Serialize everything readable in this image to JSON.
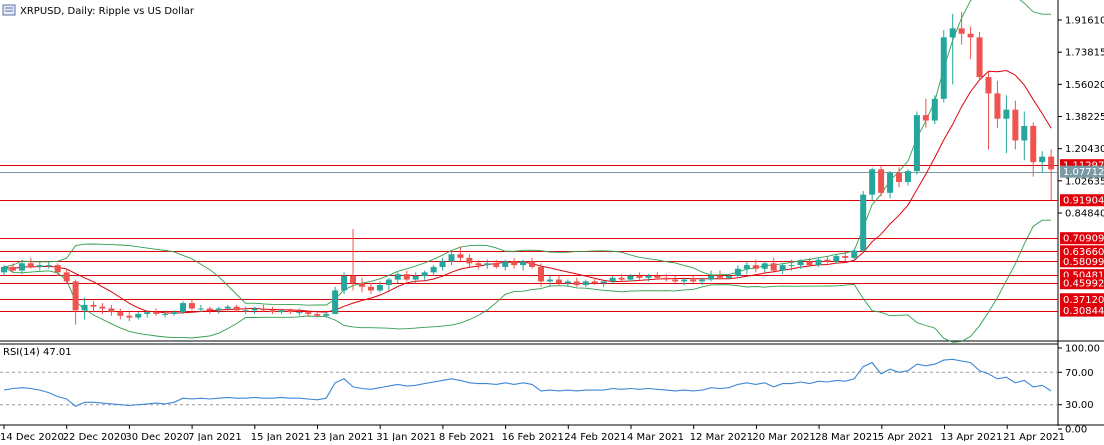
{
  "header": {
    "title": "XRPUSD, Daily:  Ripple vs US Dollar",
    "icon": "chart-window-icon"
  },
  "chart_data": {
    "type": "candlestick",
    "symbol": "XRPUSD",
    "timeframe": "Daily",
    "description": "Ripple vs US Dollar",
    "ylim": [
      0.25,
      2.0
    ],
    "y_ticks": [
      "1.91610",
      "1.73815",
      "1.56020",
      "1.38225",
      "1.20430",
      "1.02635",
      "0.84840"
    ],
    "x_ticks": [
      "14 Dec 2020",
      "22 Dec 2020",
      "30 Dec 2020",
      "7 Jan 2021",
      "15 Jan 2021",
      "23 Jan 2021",
      "31 Jan 2021",
      "8 Feb 2021",
      "16 Feb 2021",
      "24 Feb 2021",
      "4 Mar 2021",
      "12 Mar 2021",
      "20 Mar 2021",
      "28 Mar 2021",
      "5 Apr 2021",
      "13 Apr 2021",
      "21 Apr 2021"
    ],
    "price_levels": [
      {
        "label": "1.11297",
        "value": 1.11297,
        "tag": "red"
      },
      {
        "label": "1.07712",
        "value": 1.07712,
        "tag": "gray"
      },
      {
        "label": "0.91904",
        "value": 0.91904,
        "tag": "red"
      },
      {
        "label": "0.70909",
        "value": 0.70909,
        "tag": "red"
      },
      {
        "label": "0.63660",
        "value": 0.6366,
        "tag": "red"
      },
      {
        "label": "0.58099",
        "value": 0.58099,
        "tag": "red"
      },
      {
        "label": "0.50481",
        "value": 0.50481,
        "tag": "red"
      },
      {
        "label": "0.45992",
        "value": 0.45992,
        "tag": "red"
      },
      {
        "label": "0.37120",
        "value": 0.3712,
        "tag": "red"
      },
      {
        "label": "0.30844",
        "value": 0.30844,
        "tag": "red"
      }
    ],
    "candles": [
      [
        0.52,
        0.56,
        0.5,
        0.55
      ],
      [
        0.55,
        0.57,
        0.52,
        0.53
      ],
      [
        0.53,
        0.59,
        0.51,
        0.57
      ],
      [
        0.57,
        0.6,
        0.54,
        0.55
      ],
      [
        0.55,
        0.58,
        0.53,
        0.56
      ],
      [
        0.56,
        0.58,
        0.54,
        0.56
      ],
      [
        0.56,
        0.57,
        0.5,
        0.52
      ],
      [
        0.52,
        0.54,
        0.46,
        0.47
      ],
      [
        0.47,
        0.48,
        0.23,
        0.31
      ],
      [
        0.31,
        0.38,
        0.26,
        0.34
      ],
      [
        0.34,
        0.36,
        0.3,
        0.33
      ],
      [
        0.33,
        0.35,
        0.29,
        0.32
      ],
      [
        0.32,
        0.34,
        0.28,
        0.3
      ],
      [
        0.3,
        0.32,
        0.26,
        0.28
      ],
      [
        0.28,
        0.3,
        0.25,
        0.27
      ],
      [
        0.27,
        0.3,
        0.26,
        0.29
      ],
      [
        0.29,
        0.31,
        0.27,
        0.3
      ],
      [
        0.3,
        0.32,
        0.28,
        0.29
      ],
      [
        0.29,
        0.31,
        0.27,
        0.29
      ],
      [
        0.29,
        0.31,
        0.28,
        0.3
      ],
      [
        0.3,
        0.36,
        0.29,
        0.35
      ],
      [
        0.35,
        0.37,
        0.31,
        0.32
      ],
      [
        0.32,
        0.34,
        0.3,
        0.32
      ],
      [
        0.32,
        0.33,
        0.29,
        0.31
      ],
      [
        0.31,
        0.33,
        0.29,
        0.32
      ],
      [
        0.32,
        0.34,
        0.3,
        0.33
      ],
      [
        0.33,
        0.34,
        0.3,
        0.31
      ],
      [
        0.31,
        0.33,
        0.29,
        0.31
      ],
      [
        0.31,
        0.33,
        0.29,
        0.32
      ],
      [
        0.32,
        0.34,
        0.3,
        0.31
      ],
      [
        0.31,
        0.33,
        0.29,
        0.3
      ],
      [
        0.3,
        0.32,
        0.29,
        0.31
      ],
      [
        0.31,
        0.32,
        0.29,
        0.3
      ],
      [
        0.3,
        0.32,
        0.28,
        0.3
      ],
      [
        0.3,
        0.31,
        0.28,
        0.29
      ],
      [
        0.29,
        0.3,
        0.27,
        0.28
      ],
      [
        0.28,
        0.3,
        0.27,
        0.29
      ],
      [
        0.29,
        0.44,
        0.29,
        0.42
      ],
      [
        0.42,
        0.52,
        0.4,
        0.5
      ],
      [
        0.5,
        0.76,
        0.42,
        0.46
      ],
      [
        0.46,
        0.49,
        0.41,
        0.44
      ],
      [
        0.44,
        0.46,
        0.4,
        0.42
      ],
      [
        0.42,
        0.47,
        0.41,
        0.45
      ],
      [
        0.45,
        0.49,
        0.42,
        0.48
      ],
      [
        0.48,
        0.52,
        0.46,
        0.51
      ],
      [
        0.51,
        0.53,
        0.47,
        0.48
      ],
      [
        0.48,
        0.52,
        0.46,
        0.5
      ],
      [
        0.5,
        0.53,
        0.48,
        0.52
      ],
      [
        0.52,
        0.56,
        0.5,
        0.55
      ],
      [
        0.55,
        0.6,
        0.53,
        0.58
      ],
      [
        0.58,
        0.64,
        0.56,
        0.62
      ],
      [
        0.62,
        0.66,
        0.58,
        0.6
      ],
      [
        0.6,
        0.62,
        0.55,
        0.57
      ],
      [
        0.57,
        0.59,
        0.54,
        0.56
      ],
      [
        0.56,
        0.59,
        0.54,
        0.57
      ],
      [
        0.57,
        0.59,
        0.54,
        0.55
      ],
      [
        0.55,
        0.59,
        0.53,
        0.58
      ],
      [
        0.58,
        0.6,
        0.54,
        0.56
      ],
      [
        0.56,
        0.59,
        0.53,
        0.58
      ],
      [
        0.58,
        0.6,
        0.54,
        0.55
      ],
      [
        0.55,
        0.57,
        0.44,
        0.47
      ],
      [
        0.47,
        0.5,
        0.44,
        0.48
      ],
      [
        0.48,
        0.5,
        0.45,
        0.46
      ],
      [
        0.46,
        0.48,
        0.44,
        0.47
      ],
      [
        0.47,
        0.49,
        0.44,
        0.45
      ],
      [
        0.45,
        0.48,
        0.44,
        0.47
      ],
      [
        0.47,
        0.49,
        0.45,
        0.46
      ],
      [
        0.46,
        0.48,
        0.44,
        0.47
      ],
      [
        0.47,
        0.5,
        0.46,
        0.49
      ],
      [
        0.49,
        0.51,
        0.47,
        0.48
      ],
      [
        0.48,
        0.51,
        0.47,
        0.5
      ],
      [
        0.5,
        0.52,
        0.48,
        0.49
      ],
      [
        0.49,
        0.51,
        0.47,
        0.5
      ],
      [
        0.5,
        0.52,
        0.48,
        0.49
      ],
      [
        0.49,
        0.51,
        0.47,
        0.48
      ],
      [
        0.48,
        0.5,
        0.46,
        0.47
      ],
      [
        0.47,
        0.49,
        0.45,
        0.48
      ],
      [
        0.48,
        0.5,
        0.46,
        0.47
      ],
      [
        0.47,
        0.49,
        0.45,
        0.48
      ],
      [
        0.48,
        0.53,
        0.47,
        0.5
      ],
      [
        0.5,
        0.53,
        0.48,
        0.49
      ],
      [
        0.49,
        0.51,
        0.48,
        0.5
      ],
      [
        0.5,
        0.56,
        0.49,
        0.54
      ],
      [
        0.54,
        0.58,
        0.51,
        0.56
      ],
      [
        0.56,
        0.59,
        0.52,
        0.54
      ],
      [
        0.54,
        0.58,
        0.52,
        0.57
      ],
      [
        0.57,
        0.6,
        0.52,
        0.53
      ],
      [
        0.53,
        0.57,
        0.51,
        0.56
      ],
      [
        0.56,
        0.59,
        0.53,
        0.56
      ],
      [
        0.56,
        0.59,
        0.54,
        0.58
      ],
      [
        0.58,
        0.6,
        0.55,
        0.56
      ],
      [
        0.56,
        0.6,
        0.55,
        0.59
      ],
      [
        0.59,
        0.61,
        0.57,
        0.58
      ],
      [
        0.58,
        0.62,
        0.57,
        0.61
      ],
      [
        0.61,
        0.64,
        0.58,
        0.6
      ],
      [
        0.6,
        0.65,
        0.59,
        0.64
      ],
      [
        0.64,
        0.97,
        0.63,
        0.95
      ],
      [
        0.95,
        1.1,
        0.92,
        1.09
      ],
      [
        1.09,
        1.11,
        0.94,
        0.96
      ],
      [
        0.96,
        1.08,
        0.93,
        1.07
      ],
      [
        1.07,
        1.1,
        0.99,
        1.02
      ],
      [
        1.02,
        1.09,
        1.0,
        1.08
      ],
      [
        1.08,
        1.41,
        1.06,
        1.39
      ],
      [
        1.39,
        1.48,
        1.32,
        1.36
      ],
      [
        1.36,
        1.5,
        1.34,
        1.48
      ],
      [
        1.48,
        1.86,
        1.46,
        1.82
      ],
      [
        1.82,
        1.95,
        1.56,
        1.87
      ],
      [
        1.87,
        1.96,
        1.78,
        1.84
      ],
      [
        1.84,
        1.88,
        1.7,
        1.82
      ],
      [
        1.82,
        1.85,
        1.58,
        1.6
      ],
      [
        1.6,
        1.63,
        1.2,
        1.51
      ],
      [
        1.51,
        1.58,
        1.32,
        1.37
      ],
      [
        1.37,
        1.5,
        1.18,
        1.42
      ],
      [
        1.42,
        1.47,
        1.2,
        1.25
      ],
      [
        1.25,
        1.41,
        1.14,
        1.33
      ],
      [
        1.33,
        1.35,
        1.05,
        1.13
      ],
      [
        1.13,
        1.19,
        1.07,
        1.16
      ],
      [
        1.16,
        1.2,
        0.92,
        1.09
      ]
    ]
  },
  "rsi": {
    "label": "RSI(14) 47.01",
    "levels": [
      70,
      30
    ],
    "ticks": [
      "100.00",
      "70.00",
      "30.00",
      "0.00"
    ],
    "values": [
      48,
      50,
      51,
      50,
      48,
      45,
      40,
      37,
      28,
      33,
      33,
      32,
      31,
      30,
      29,
      30,
      31,
      32,
      31,
      33,
      38,
      37,
      38,
      37,
      38,
      39,
      38,
      38,
      39,
      38,
      38,
      39,
      38,
      38,
      37,
      36,
      38,
      57,
      62,
      52,
      50,
      49,
      51,
      53,
      55,
      53,
      54,
      56,
      58,
      60,
      62,
      60,
      57,
      56,
      56,
      55,
      57,
      55,
      57,
      55,
      47,
      48,
      47,
      48,
      47,
      48,
      48,
      48,
      50,
      49,
      50,
      49,
      50,
      49,
      48,
      47,
      48,
      47,
      48,
      51,
      50,
      51,
      55,
      57,
      55,
      57,
      52,
      56,
      56,
      58,
      56,
      59,
      58,
      60,
      59,
      62,
      77,
      82,
      68,
      74,
      70,
      72,
      80,
      78,
      80,
      85,
      86,
      84,
      82,
      72,
      68,
      62,
      64,
      57,
      60,
      52,
      54,
      47
    ],
    "color": "#3d87d6"
  }
}
